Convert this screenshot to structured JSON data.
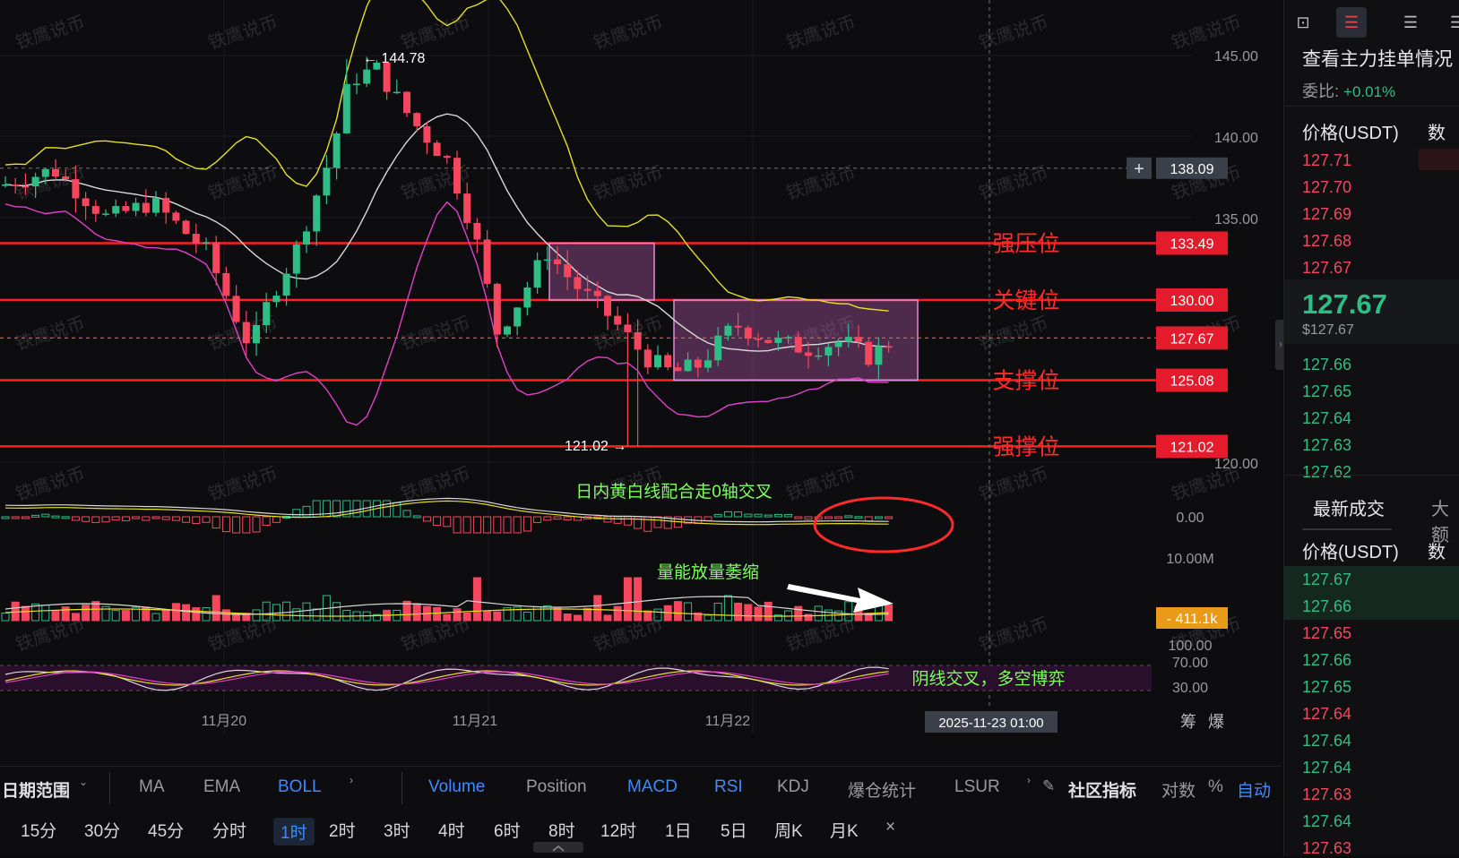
{
  "chart": {
    "price_axis": [
      "145.00",
      "140.00",
      "135.00",
      "120.00"
    ],
    "crosshair_price": "138.09",
    "high_label": "144.78",
    "low_label": "121.02",
    "levels": [
      {
        "price": "133.49",
        "name": "强压位"
      },
      {
        "price": "130.00",
        "name": "关键位"
      },
      {
        "price": "127.67",
        "name": ""
      },
      {
        "price": "125.08",
        "name": "支撑位"
      },
      {
        "price": "121.02",
        "name": "强撑位"
      }
    ],
    "macd_axis": "0.00",
    "macd_note": "日内黄白线配合走0轴交叉",
    "vol_axis_top": "10.00M",
    "vol_current": "411.1k",
    "vol_note": "量能放量萎缩",
    "rsi_axis": [
      "100.00",
      "70.00",
      "30.00"
    ],
    "rsi_note": "阴线交叉，多空博弈",
    "date_labels": [
      "11月20",
      "11月21",
      "11月22"
    ],
    "crosshair_time": "2025-11-23 01:00",
    "corner_labels": [
      "筹",
      "爆"
    ],
    "watermark": "铁鹰说币",
    "colors": {
      "up": "#2ebd85",
      "down": "#f6465d",
      "level": "#ff2020",
      "ma_white": "#d8d8d8",
      "ma_yellow": "#e6e01f",
      "ma_pink": "#e040c8"
    }
  },
  "toolbar": {
    "date_range": "日期范围",
    "indicators": [
      "MA",
      "EMA",
      "BOLL"
    ],
    "sub_indicators": [
      "Volume",
      "Position",
      "MACD",
      "RSI",
      "KDJ",
      "爆仓统计",
      "LSUR"
    ],
    "community": "社区指标",
    "log": "对数",
    "percent": "%",
    "auto": "自动",
    "timeframes": [
      "15分",
      "30分",
      "45分",
      "分时",
      "1时",
      "2时",
      "3时",
      "4时",
      "6时",
      "8时",
      "12时",
      "1日",
      "5日",
      "周K",
      "月K"
    ],
    "active_timeframe": "1时",
    "close": "×"
  },
  "side": {
    "title": "查看主力挂单情况",
    "ratio_label": "委比:",
    "ratio_value": "+0.01%",
    "col_price": "价格(USDT)",
    "col_qty": "数",
    "asks": [
      "127.71",
      "127.70",
      "127.69",
      "127.68",
      "127.67"
    ],
    "last_price": "127.67",
    "last_usd": "$127.67",
    "bids": [
      "127.66",
      "127.65",
      "127.64",
      "127.63",
      "127.62"
    ],
    "tab_latest": "最新成交",
    "tab_large": "大额",
    "trades": [
      {
        "p": "127.67",
        "side": "bid"
      },
      {
        "p": "127.66",
        "side": "bid"
      },
      {
        "p": "127.65",
        "side": "ask"
      },
      {
        "p": "127.66",
        "side": "bid"
      },
      {
        "p": "127.65",
        "side": "bid"
      },
      {
        "p": "127.64",
        "side": "ask"
      },
      {
        "p": "127.64",
        "side": "bid"
      },
      {
        "p": "127.64",
        "side": "bid"
      },
      {
        "p": "127.63",
        "side": "ask"
      },
      {
        "p": "127.64",
        "side": "bid"
      },
      {
        "p": "127.63",
        "side": "ask"
      }
    ]
  }
}
